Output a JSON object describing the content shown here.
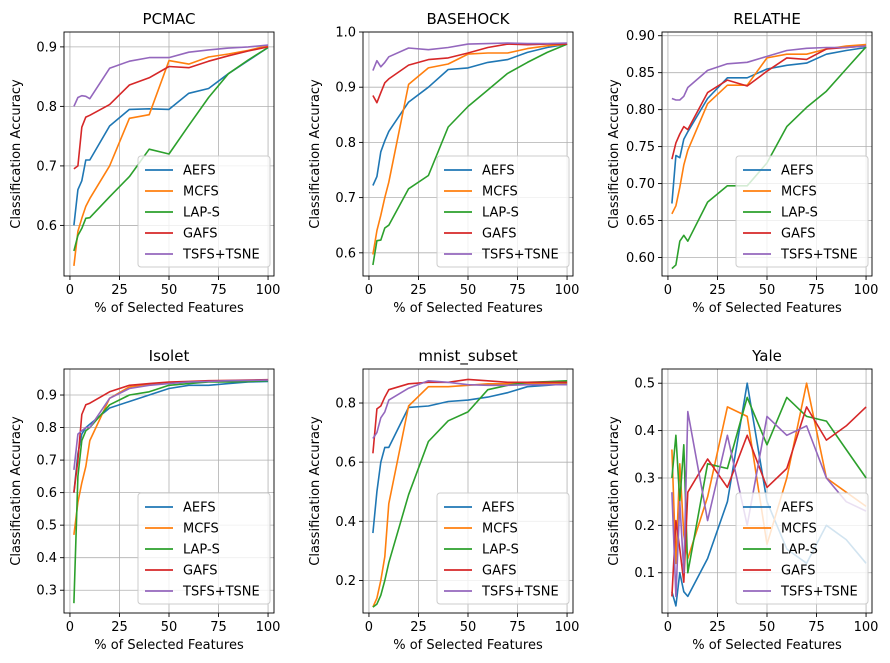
{
  "figure": {
    "xlabel": "% of Selected Features",
    "ylabel": "Classification Accuracy"
  },
  "colors": {
    "AEFS": "#1f77b4",
    "MCFS": "#ff7f0e",
    "LAP-S": "#2ca02c",
    "GAFS": "#d62728",
    "TSFS+TSNE": "#9467bd"
  },
  "chart_data": [
    {
      "type": "line",
      "title": "PCMAC",
      "xlabel": "% of Selected Features",
      "ylabel": "Classification Accuracy",
      "xlim": [
        -3,
        103
      ],
      "ylim": [
        0.515,
        0.925
      ],
      "xticks": [
        0,
        25,
        50,
        75,
        100
      ],
      "yticks": [
        0.6,
        0.7,
        0.8,
        0.9
      ],
      "ytick_labels": [
        "0.6",
        "0.7",
        "0.8",
        "0.9"
      ],
      "legend": "lower-right",
      "x": [
        2,
        4,
        6,
        8,
        10,
        20,
        30,
        40,
        50,
        60,
        70,
        80,
        90,
        100
      ],
      "series": [
        {
          "name": "AEFS",
          "values": [
            0.6,
            0.66,
            0.675,
            0.71,
            0.71,
            0.767,
            0.795,
            0.796,
            0.795,
            0.822,
            0.83,
            0.855,
            0.877,
            0.899
          ]
        },
        {
          "name": "MCFS",
          "values": [
            0.532,
            0.59,
            0.612,
            0.632,
            0.645,
            0.7,
            0.78,
            0.786,
            0.877,
            0.871,
            0.883,
            0.888,
            0.894,
            0.902
          ]
        },
        {
          "name": "LAP-S",
          "values": [
            0.557,
            0.583,
            0.595,
            0.612,
            0.613,
            0.648,
            0.682,
            0.728,
            0.72,
            0.768,
            0.815,
            0.855,
            0.878,
            0.899
          ]
        },
        {
          "name": "GAFS",
          "values": [
            0.695,
            0.7,
            0.765,
            0.782,
            0.785,
            0.803,
            0.836,
            0.848,
            0.867,
            0.865,
            0.876,
            0.885,
            0.893,
            0.9
          ]
        },
        {
          "name": "TSFS+TSNE",
          "values": [
            0.8,
            0.815,
            0.818,
            0.817,
            0.813,
            0.864,
            0.876,
            0.882,
            0.882,
            0.891,
            0.895,
            0.898,
            0.9,
            0.903
          ]
        }
      ]
    },
    {
      "type": "line",
      "title": "BASEHOCK",
      "xlabel": "% of Selected Features",
      "ylabel": "Classification Accuracy",
      "xlim": [
        -3,
        103
      ],
      "ylim": [
        0.558,
        1.0
      ],
      "xticks": [
        0,
        25,
        50,
        75,
        100
      ],
      "yticks": [
        0.6,
        0.7,
        0.8,
        0.9,
        1.0
      ],
      "ytick_labels": [
        "0.6",
        "0.7",
        "0.8",
        "0.9",
        "1.0"
      ],
      "legend": "lower-right",
      "x": [
        2,
        4,
        6,
        8,
        10,
        20,
        30,
        40,
        50,
        60,
        70,
        80,
        90,
        100
      ],
      "series": [
        {
          "name": "AEFS",
          "values": [
            0.722,
            0.738,
            0.783,
            0.803,
            0.82,
            0.873,
            0.9,
            0.932,
            0.935,
            0.945,
            0.95,
            0.963,
            0.972,
            0.978
          ]
        },
        {
          "name": "MCFS",
          "values": [
            0.597,
            0.64,
            0.668,
            0.7,
            0.728,
            0.905,
            0.935,
            0.942,
            0.96,
            0.962,
            0.962,
            0.97,
            0.975,
            0.978
          ]
        },
        {
          "name": "LAP-S",
          "values": [
            0.578,
            0.622,
            0.623,
            0.645,
            0.65,
            0.716,
            0.74,
            0.828,
            0.865,
            0.895,
            0.925,
            0.945,
            0.963,
            0.978
          ]
        },
        {
          "name": "GAFS",
          "values": [
            0.885,
            0.872,
            0.89,
            0.908,
            0.915,
            0.94,
            0.95,
            0.953,
            0.962,
            0.972,
            0.978,
            0.977,
            0.978,
            0.978
          ]
        },
        {
          "name": "TSFS+TSNE",
          "values": [
            0.93,
            0.948,
            0.937,
            0.945,
            0.955,
            0.971,
            0.968,
            0.972,
            0.978,
            0.979,
            0.98,
            0.979,
            0.979,
            0.98
          ]
        }
      ]
    },
    {
      "type": "line",
      "title": "RELATHE",
      "xlabel": "% of Selected Features",
      "ylabel": "Classification Accuracy",
      "xlim": [
        -3,
        103
      ],
      "ylim": [
        0.575,
        0.905
      ],
      "xticks": [
        0,
        25,
        50,
        75,
        100
      ],
      "yticks": [
        0.6,
        0.65,
        0.7,
        0.75,
        0.8,
        0.85,
        0.9
      ],
      "ytick_labels": [
        "0.60",
        "0.65",
        "0.70",
        "0.75",
        "0.80",
        "0.85",
        "0.90"
      ],
      "legend": "lower-right",
      "x": [
        2,
        4,
        6,
        8,
        10,
        20,
        30,
        40,
        50,
        60,
        70,
        80,
        90,
        100
      ],
      "series": [
        {
          "name": "AEFS",
          "values": [
            0.673,
            0.738,
            0.735,
            0.76,
            0.77,
            0.815,
            0.843,
            0.843,
            0.855,
            0.86,
            0.863,
            0.875,
            0.88,
            0.884
          ]
        },
        {
          "name": "MCFS",
          "values": [
            0.659,
            0.67,
            0.695,
            0.725,
            0.745,
            0.808,
            0.833,
            0.833,
            0.87,
            0.875,
            0.875,
            0.882,
            0.886,
            0.888
          ]
        },
        {
          "name": "LAP-S",
          "values": [
            0.585,
            0.59,
            0.622,
            0.63,
            0.622,
            0.675,
            0.697,
            0.697,
            0.728,
            0.777,
            0.803,
            0.825,
            0.855,
            0.885
          ]
        },
        {
          "name": "GAFS",
          "values": [
            0.733,
            0.755,
            0.767,
            0.777,
            0.773,
            0.823,
            0.84,
            0.832,
            0.852,
            0.87,
            0.868,
            0.882,
            0.884,
            0.886
          ]
        },
        {
          "name": "TSFS+TSNE",
          "values": [
            0.815,
            0.813,
            0.813,
            0.818,
            0.83,
            0.853,
            0.862,
            0.864,
            0.872,
            0.88,
            0.883,
            0.884,
            0.884,
            0.886
          ]
        }
      ]
    },
    {
      "type": "line",
      "title": "Isolet",
      "xlabel": "% of Selected Features",
      "ylabel": "Classification Accuracy",
      "xlim": [
        -3,
        103
      ],
      "ylim": [
        0.23,
        0.98
      ],
      "xticks": [
        0,
        25,
        50,
        75,
        100
      ],
      "yticks": [
        0.3,
        0.4,
        0.5,
        0.6,
        0.7,
        0.8,
        0.9
      ],
      "ytick_labels": [
        "0.3",
        "0.4",
        "0.5",
        "0.6",
        "0.7",
        "0.8",
        "0.9"
      ],
      "legend": "lower-right",
      "x": [
        2,
        4,
        6,
        8,
        10,
        20,
        30,
        40,
        50,
        60,
        70,
        80,
        90,
        100
      ],
      "series": [
        {
          "name": "AEFS",
          "values": [
            0.6,
            0.72,
            0.78,
            0.8,
            0.81,
            0.86,
            0.88,
            0.9,
            0.92,
            0.93,
            0.93,
            0.935,
            0.94,
            0.942
          ]
        },
        {
          "name": "MCFS",
          "values": [
            0.47,
            0.57,
            0.63,
            0.68,
            0.76,
            0.89,
            0.925,
            0.932,
            0.937,
            0.94,
            0.942,
            0.943,
            0.945,
            0.946
          ]
        },
        {
          "name": "LAP-S",
          "values": [
            0.26,
            0.65,
            0.76,
            0.79,
            0.8,
            0.87,
            0.9,
            0.91,
            0.93,
            0.935,
            0.94,
            0.94,
            0.942,
            0.944
          ]
        },
        {
          "name": "GAFS",
          "values": [
            0.6,
            0.7,
            0.84,
            0.87,
            0.875,
            0.91,
            0.93,
            0.935,
            0.94,
            0.942,
            0.944,
            0.945,
            0.946,
            0.947
          ]
        },
        {
          "name": "TSFS+TSNE",
          "values": [
            0.67,
            0.78,
            0.79,
            0.8,
            0.8,
            0.89,
            0.92,
            0.93,
            0.935,
            0.94,
            0.942,
            0.944,
            0.945,
            0.946
          ]
        }
      ]
    },
    {
      "type": "line",
      "title": "mnist_subset",
      "xlabel": "% of Selected Features",
      "ylabel": "Classification Accuracy",
      "xlim": [
        -3,
        103
      ],
      "ylim": [
        0.09,
        0.915
      ],
      "xticks": [
        0,
        25,
        50,
        75,
        100
      ],
      "yticks": [
        0.2,
        0.4,
        0.6,
        0.8
      ],
      "ytick_labels": [
        "0.2",
        "0.4",
        "0.6",
        "0.8"
      ],
      "legend": "lower-right",
      "x": [
        2,
        4,
        6,
        8,
        10,
        20,
        30,
        40,
        50,
        60,
        70,
        80,
        90,
        100
      ],
      "series": [
        {
          "name": "AEFS",
          "values": [
            0.36,
            0.5,
            0.6,
            0.65,
            0.65,
            0.785,
            0.79,
            0.805,
            0.81,
            0.82,
            0.835,
            0.855,
            0.86,
            0.865
          ]
        },
        {
          "name": "MCFS",
          "values": [
            0.11,
            0.14,
            0.2,
            0.28,
            0.46,
            0.79,
            0.855,
            0.855,
            0.86,
            0.865,
            0.865,
            0.866,
            0.867,
            0.868
          ]
        },
        {
          "name": "LAP-S",
          "values": [
            0.11,
            0.12,
            0.15,
            0.2,
            0.26,
            0.49,
            0.67,
            0.74,
            0.77,
            0.845,
            0.86,
            0.87,
            0.872,
            0.875
          ]
        },
        {
          "name": "GAFS",
          "values": [
            0.63,
            0.78,
            0.79,
            0.82,
            0.845,
            0.865,
            0.87,
            0.87,
            0.88,
            0.875,
            0.87,
            0.87,
            0.87,
            0.87
          ]
        },
        {
          "name": "TSFS+TSNE",
          "values": [
            0.68,
            0.7,
            0.75,
            0.77,
            0.81,
            0.85,
            0.875,
            0.87,
            0.862,
            0.86,
            0.86,
            0.862,
            0.862,
            0.862
          ]
        }
      ]
    },
    {
      "type": "line",
      "title": "Yale",
      "xlabel": "% of Selected Features",
      "ylabel": "Classification Accuracy",
      "xlim": [
        -3,
        103
      ],
      "ylim": [
        0.015,
        0.53
      ],
      "xticks": [
        0,
        25,
        50,
        75,
        100
      ],
      "yticks": [
        0.1,
        0.2,
        0.3,
        0.4,
        0.5
      ],
      "ytick_labels": [
        "0.1",
        "0.2",
        "0.3",
        "0.4",
        "0.5"
      ],
      "legend": "lower-right",
      "x": [
        2,
        4,
        6,
        8,
        10,
        20,
        30,
        40,
        50,
        60,
        70,
        80,
        90,
        100
      ],
      "series": [
        {
          "name": "AEFS",
          "values": [
            0.06,
            0.03,
            0.1,
            0.06,
            0.05,
            0.13,
            0.25,
            0.5,
            0.25,
            0.15,
            0.12,
            0.2,
            0.17,
            0.12
          ]
        },
        {
          "name": "MCFS",
          "values": [
            0.36,
            0.12,
            0.33,
            0.18,
            0.13,
            0.26,
            0.45,
            0.43,
            0.16,
            0.3,
            0.5,
            0.3,
            0.27,
            0.24
          ]
        },
        {
          "name": "LAP-S",
          "values": [
            0.3,
            0.39,
            0.25,
            0.37,
            0.1,
            0.33,
            0.32,
            0.47,
            0.37,
            0.47,
            0.43,
            0.42,
            0.36,
            0.3
          ]
        },
        {
          "name": "GAFS",
          "values": [
            0.05,
            0.21,
            0.15,
            0.08,
            0.27,
            0.34,
            0.28,
            0.39,
            0.28,
            0.32,
            0.45,
            0.38,
            0.41,
            0.45
          ]
        },
        {
          "name": "TSFS+TSNE",
          "values": [
            0.27,
            0.05,
            0.25,
            0.1,
            0.44,
            0.21,
            0.39,
            0.2,
            0.43,
            0.39,
            0.41,
            0.3,
            0.25,
            0.23
          ]
        }
      ]
    }
  ]
}
